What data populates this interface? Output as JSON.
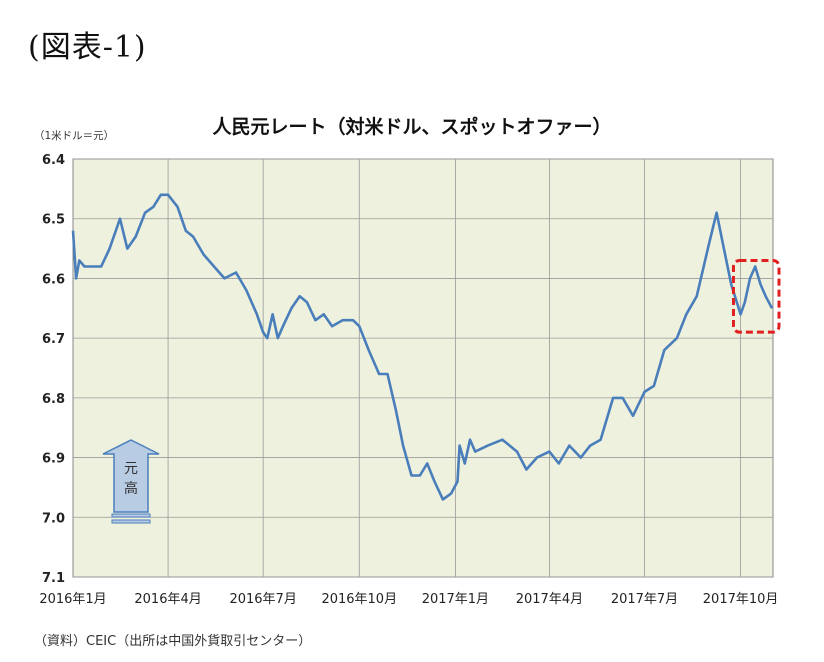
{
  "figure_label": "(図表-1)",
  "unit_label": "（1米ドル＝元）",
  "source_note": "（資料）CEIC（出所は中国外貨取引センター）",
  "arrow_label": [
    "元",
    "高"
  ],
  "colors": {
    "line": "#4a7ebb",
    "plot_bg": "#eef1de",
    "grid": "#999999",
    "highlight": "#e02020"
  },
  "chart_data": {
    "type": "line",
    "title": "人民元レート（対米ドル、スポットオファー）",
    "ylabel": "（1米ドル＝元）",
    "y_inverted": true,
    "ylim": [
      6.4,
      7.1
    ],
    "yticks": [
      "6.4",
      "6.5",
      "6.6",
      "6.7",
      "6.8",
      "6.9",
      "7.0",
      "7.1"
    ],
    "xlim": [
      "2016-01",
      "2017-11"
    ],
    "xticks": [
      "2016年1月",
      "2016年4月",
      "2016年7月",
      "2016年10月",
      "2017年1月",
      "2017年4月",
      "2017年7月",
      "2017年10月"
    ],
    "grid": true,
    "series": [
      {
        "x": [
          "2016-01-01",
          "2016-01-04",
          "2016-01-07",
          "2016-01-12",
          "2016-01-20",
          "2016-01-28",
          "2016-02-05",
          "2016-02-15",
          "2016-02-22",
          "2016-03-01",
          "2016-03-10",
          "2016-03-18",
          "2016-03-25",
          "2016-04-01",
          "2016-04-10",
          "2016-04-18",
          "2016-04-25",
          "2016-05-05",
          "2016-05-15",
          "2016-05-25",
          "2016-06-05",
          "2016-06-15",
          "2016-06-25",
          "2016-07-01",
          "2016-07-05",
          "2016-07-10",
          "2016-07-15",
          "2016-07-20",
          "2016-07-28",
          "2016-08-05",
          "2016-08-12",
          "2016-08-20",
          "2016-08-28",
          "2016-09-05",
          "2016-09-15",
          "2016-09-25",
          "2016-10-01",
          "2016-10-10",
          "2016-10-20",
          "2016-10-28",
          "2016-11-05",
          "2016-11-12",
          "2016-11-20",
          "2016-11-28",
          "2016-12-05",
          "2016-12-12",
          "2016-12-20",
          "2016-12-28",
          "2017-01-03",
          "2017-01-05",
          "2017-01-10",
          "2017-01-15",
          "2017-01-20",
          "2017-02-01",
          "2017-02-15",
          "2017-03-01",
          "2017-03-10",
          "2017-03-20",
          "2017-04-01",
          "2017-04-10",
          "2017-04-20",
          "2017-05-01",
          "2017-05-10",
          "2017-05-20",
          "2017-06-01",
          "2017-06-10",
          "2017-06-20",
          "2017-07-01",
          "2017-07-10",
          "2017-07-20",
          "2017-08-01",
          "2017-08-10",
          "2017-08-20",
          "2017-09-01",
          "2017-09-08",
          "2017-09-15",
          "2017-09-22",
          "2017-10-01",
          "2017-10-05",
          "2017-10-10",
          "2017-10-15",
          "2017-10-20",
          "2017-10-25",
          "2017-10-31"
        ],
        "values": [
          6.52,
          6.6,
          6.57,
          6.58,
          6.58,
          6.58,
          6.55,
          6.5,
          6.55,
          6.53,
          6.49,
          6.48,
          6.46,
          6.46,
          6.48,
          6.52,
          6.53,
          6.56,
          6.58,
          6.6,
          6.59,
          6.62,
          6.66,
          6.69,
          6.7,
          6.66,
          6.7,
          6.68,
          6.65,
          6.63,
          6.64,
          6.67,
          6.66,
          6.68,
          6.67,
          6.67,
          6.68,
          6.72,
          6.76,
          6.76,
          6.82,
          6.88,
          6.93,
          6.93,
          6.91,
          6.94,
          6.97,
          6.96,
          6.94,
          6.88,
          6.91,
          6.87,
          6.89,
          6.88,
          6.87,
          6.89,
          6.92,
          6.9,
          6.89,
          6.91,
          6.88,
          6.9,
          6.88,
          6.87,
          6.8,
          6.8,
          6.83,
          6.79,
          6.78,
          6.72,
          6.7,
          6.66,
          6.63,
          6.54,
          6.49,
          6.55,
          6.61,
          6.66,
          6.64,
          6.6,
          6.58,
          6.61,
          6.63,
          6.65
        ]
      }
    ]
  }
}
